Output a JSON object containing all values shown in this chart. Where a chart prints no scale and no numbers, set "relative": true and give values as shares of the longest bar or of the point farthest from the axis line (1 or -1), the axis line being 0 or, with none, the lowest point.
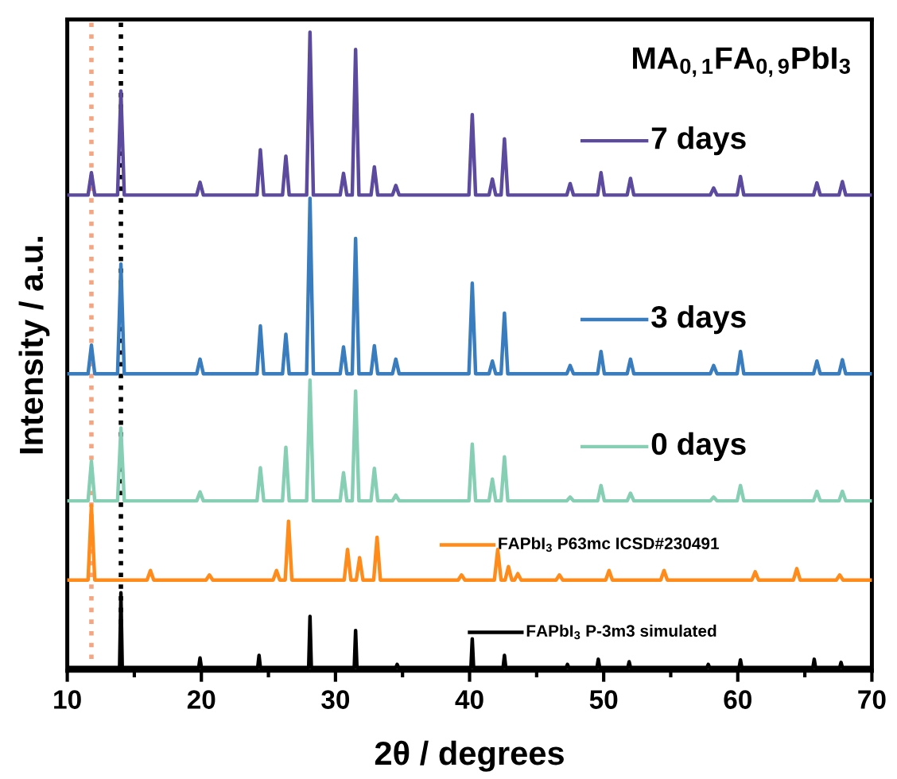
{
  "chart_data": {
    "type": "line",
    "relative": true,
    "title": "MA$_{0,1}$FA$_{0,9}$PbI$_{3}$",
    "xlabel": "2θ / degrees",
    "ylabel": "Intensity / a.u.",
    "xlim": [
      10,
      70
    ],
    "xticks": [
      10,
      20,
      30,
      40,
      50,
      60,
      70
    ],
    "grid": false,
    "legend": "right",
    "marker": "none",
    "line_style": "solid",
    "ref_lines": [
      {
        "axis": "x",
        "value": 11.8,
        "label": null,
        "color": "#f4a582",
        "line_style": "dotted"
      },
      {
        "axis": "x",
        "value": 14.0,
        "label": null,
        "color": "#000000",
        "line_style": "dotted"
      }
    ],
    "series": [
      {
        "name": "7 days",
        "color": "#5b4a9e",
        "x": [
          10,
          11.55,
          11.8,
          12.05,
          13.75,
          14,
          14.25,
          19.65,
          19.9,
          20.15,
          24.15,
          24.4,
          24.65,
          26.05,
          26.3,
          26.55,
          27.85,
          28.1,
          28.35,
          30.35,
          30.6,
          30.85,
          31.25,
          31.5,
          31.75,
          32.65,
          32.9,
          33.15,
          34.25,
          34.5,
          34.75,
          39.95,
          40.2,
          40.45,
          41.45,
          41.7,
          41.95,
          42.35,
          42.6,
          42.85,
          47.25,
          47.5,
          47.75,
          49.55,
          49.8,
          50.05,
          51.75,
          52,
          52.25,
          57.95,
          58.2,
          58.45,
          59.95,
          60.2,
          60.45,
          65.65,
          65.9,
          66.15,
          67.55,
          67.8,
          68.05,
          70
        ],
        "values": [
          0.745,
          0.745,
          0.78,
          0.745,
          0.745,
          0.908,
          0.745,
          0.745,
          0.765,
          0.745,
          0.745,
          0.816,
          0.745,
          0.745,
          0.806,
          0.745,
          0.745,
          1,
          0.745,
          0.745,
          0.779,
          0.745,
          0.745,
          0.973,
          0.745,
          0.745,
          0.789,
          0.745,
          0.745,
          0.76,
          0.745,
          0.745,
          0.871,
          0.745,
          0.745,
          0.77,
          0.745,
          0.745,
          0.833,
          0.745,
          0.745,
          0.763,
          0.745,
          0.745,
          0.78,
          0.745,
          0.745,
          0.771,
          0.745,
          0.745,
          0.756,
          0.745,
          0.745,
          0.774,
          0.745,
          0.745,
          0.764,
          0.745,
          0.745,
          0.766,
          0.745,
          0.745
        ]
      },
      {
        "name": "3 days",
        "color": "#3a7dbf",
        "x": [
          10,
          11.55,
          11.8,
          12.05,
          13.75,
          14,
          14.25,
          19.65,
          19.9,
          20.15,
          24.15,
          24.4,
          24.65,
          26.05,
          26.3,
          26.55,
          27.85,
          28.1,
          28.35,
          30.35,
          30.6,
          30.85,
          31.25,
          31.5,
          31.75,
          32.65,
          32.9,
          33.15,
          34.25,
          34.5,
          34.75,
          39.95,
          40.2,
          40.45,
          41.45,
          41.7,
          41.95,
          42.35,
          42.6,
          42.85,
          47.25,
          47.5,
          47.75,
          49.55,
          49.8,
          50.05,
          51.75,
          52,
          52.25,
          57.95,
          58.2,
          58.45,
          59.95,
          60.2,
          60.45,
          65.65,
          65.9,
          66.15,
          67.55,
          67.8,
          68.05,
          70
        ],
        "values": [
          0.465,
          0.465,
          0.51,
          0.465,
          0.465,
          0.637,
          0.465,
          0.465,
          0.488,
          0.465,
          0.465,
          0.54,
          0.465,
          0.465,
          0.527,
          0.465,
          0.465,
          0.74,
          0.465,
          0.465,
          0.507,
          0.465,
          0.465,
          0.677,
          0.465,
          0.465,
          0.509,
          0.465,
          0.465,
          0.488,
          0.465,
          0.465,
          0.607,
          0.465,
          0.465,
          0.485,
          0.465,
          0.465,
          0.56,
          0.465,
          0.465,
          0.478,
          0.465,
          0.465,
          0.5,
          0.465,
          0.465,
          0.488,
          0.465,
          0.465,
          0.478,
          0.465,
          0.465,
          0.5,
          0.465,
          0.465,
          0.485,
          0.465,
          0.465,
          0.487,
          0.465,
          0.465
        ]
      },
      {
        "name": "0 days",
        "color": "#86cfb4",
        "x": [
          10,
          11.55,
          11.8,
          12.05,
          13.75,
          14,
          14.25,
          19.65,
          19.9,
          20.15,
          24.15,
          24.4,
          24.65,
          26.05,
          26.3,
          26.55,
          27.85,
          28.1,
          28.35,
          30.35,
          30.6,
          30.85,
          31.25,
          31.5,
          31.75,
          32.65,
          32.9,
          33.15,
          34.25,
          34.5,
          34.75,
          39.95,
          40.2,
          40.45,
          41.45,
          41.7,
          41.95,
          42.35,
          42.6,
          42.85,
          47.25,
          47.5,
          47.75,
          49.55,
          49.8,
          50.05,
          51.75,
          52,
          52.25,
          57.95,
          58.2,
          58.45,
          59.95,
          60.2,
          60.45,
          65.65,
          65.9,
          66.15,
          67.55,
          67.8,
          68.05,
          70
        ],
        "values": [
          0.266,
          0.266,
          0.328,
          0.266,
          0.266,
          0.38,
          0.266,
          0.266,
          0.28,
          0.266,
          0.266,
          0.318,
          0.266,
          0.266,
          0.35,
          0.266,
          0.266,
          0.455,
          0.266,
          0.266,
          0.31,
          0.266,
          0.266,
          0.438,
          0.266,
          0.266,
          0.317,
          0.266,
          0.266,
          0.275,
          0.266,
          0.266,
          0.355,
          0.266,
          0.266,
          0.3,
          0.266,
          0.266,
          0.335,
          0.266,
          0.266,
          0.272,
          0.266,
          0.266,
          0.29,
          0.266,
          0.266,
          0.278,
          0.266,
          0.266,
          0.272,
          0.266,
          0.266,
          0.29,
          0.266,
          0.266,
          0.281,
          0.266,
          0.266,
          0.281,
          0.266,
          0.266
        ]
      },
      {
        "name": "FAPbI$_{3}$ P63mc ICSD#230491",
        "color": "#ff8c1a",
        "x": [
          10,
          11.55,
          11.8,
          12.05,
          15.95,
          16.2,
          16.45,
          20.35,
          20.6,
          20.85,
          25.35,
          25.6,
          25.85,
          26.25,
          26.5,
          26.75,
          30.65,
          30.9,
          31.15,
          31.55,
          31.8,
          32.05,
          32.85,
          33.1,
          33.35,
          39.15,
          39.4,
          39.65,
          41.85,
          42.1,
          42.35,
          42.65,
          42.9,
          43.15,
          43.35,
          43.6,
          43.85,
          46.45,
          46.7,
          46.95,
          50.15,
          50.4,
          50.65,
          54.25,
          54.5,
          54.75,
          61.05,
          61.3,
          61.55,
          64.15,
          64.4,
          64.65,
          67.35,
          67.6,
          67.85,
          70
        ],
        "values": [
          0.142,
          0.142,
          0.259,
          0.142,
          0.142,
          0.157,
          0.142,
          0.142,
          0.15,
          0.142,
          0.142,
          0.157,
          0.142,
          0.142,
          0.234,
          0.142,
          0.142,
          0.19,
          0.142,
          0.142,
          0.177,
          0.142,
          0.142,
          0.209,
          0.142,
          0.142,
          0.15,
          0.142,
          0.142,
          0.19,
          0.142,
          0.142,
          0.163,
          0.142,
          0.142,
          0.152,
          0.142,
          0.142,
          0.15,
          0.142,
          0.142,
          0.157,
          0.142,
          0.142,
          0.157,
          0.142,
          0.142,
          0.155,
          0.142,
          0.142,
          0.16,
          0.142,
          0.142,
          0.15,
          0.142,
          0.142
        ]
      },
      {
        "name": "FAPbI$_{3}$ P-3m3 simulated",
        "color": "#000000",
        "x": [
          10,
          13.9,
          14,
          14.1,
          19.8,
          19.9,
          20,
          24.2,
          24.3,
          24.4,
          28,
          28.1,
          28.2,
          31.4,
          31.5,
          31.6,
          34.5,
          34.6,
          34.7,
          40.1,
          40.2,
          40.3,
          42.5,
          42.6,
          42.7,
          47.2,
          47.3,
          47.4,
          49.5,
          49.6,
          49.7,
          51.8,
          51.9,
          52,
          57.7,
          57.8,
          57.9,
          60.1,
          60.2,
          60.3,
          65.6,
          65.7,
          65.8,
          67.6,
          67.7,
          67.8,
          70
        ],
        "values": [
          0.005,
          0.005,
          0.122,
          0.005,
          0.005,
          0.02,
          0.005,
          0.005,
          0.024,
          0.005,
          0.005,
          0.085,
          0.005,
          0.005,
          0.063,
          0.005,
          0.005,
          0.01,
          0.005,
          0.005,
          0.05,
          0.005,
          0.005,
          0.024,
          0.005,
          0.005,
          0.01,
          0.005,
          0.005,
          0.018,
          0.005,
          0.005,
          0.014,
          0.005,
          0.005,
          0.01,
          0.005,
          0.005,
          0.017,
          0.005,
          0.005,
          0.018,
          0.005,
          0.005,
          0.013,
          0.005,
          0.005
        ]
      }
    ]
  }
}
